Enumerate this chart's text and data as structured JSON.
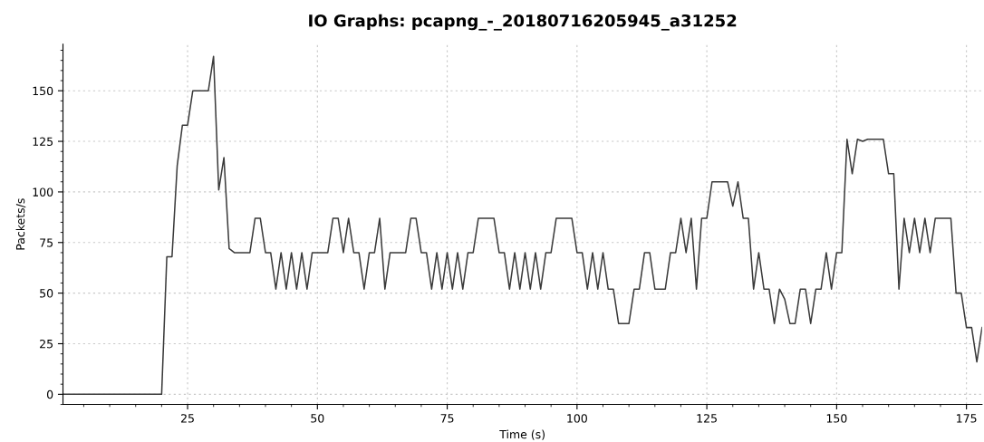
{
  "chart_data": {
    "type": "line",
    "title": "IO Graphs: pcapng_-_20180716205945_a31252",
    "xlabel": "Time (s)",
    "ylabel": "Packets/s",
    "x": [
      1,
      2,
      3,
      4,
      5,
      6,
      7,
      8,
      9,
      10,
      11,
      12,
      13,
      14,
      15,
      16,
      17,
      18,
      19,
      20,
      21,
      22,
      23,
      24,
      25,
      26,
      27,
      28,
      29,
      30,
      31,
      32,
      33,
      34,
      35,
      36,
      37,
      38,
      39,
      40,
      41,
      42,
      43,
      44,
      45,
      46,
      47,
      48,
      49,
      50,
      51,
      52,
      53,
      54,
      55,
      56,
      57,
      58,
      59,
      60,
      61,
      62,
      63,
      64,
      65,
      66,
      67,
      68,
      69,
      70,
      71,
      72,
      73,
      74,
      75,
      76,
      77,
      78,
      79,
      80,
      81,
      82,
      83,
      84,
      85,
      86,
      87,
      88,
      89,
      90,
      91,
      92,
      93,
      94,
      95,
      96,
      97,
      98,
      99,
      100,
      101,
      102,
      103,
      104,
      105,
      106,
      107,
      108,
      109,
      110,
      111,
      112,
      113,
      114,
      115,
      116,
      117,
      118,
      119,
      120,
      121,
      122,
      123,
      124,
      125,
      126,
      127,
      128,
      129,
      130,
      131,
      132,
      133,
      134,
      135,
      136,
      137,
      138,
      139,
      140,
      141,
      142,
      143,
      144,
      145,
      146,
      147,
      148,
      149,
      150,
      151,
      152,
      153,
      154,
      155,
      156,
      157,
      158,
      159,
      160,
      161,
      162,
      163,
      164,
      165,
      166,
      167,
      168,
      169,
      170,
      171,
      172,
      173,
      174,
      175,
      176,
      177,
      178
    ],
    "series": [
      {
        "color": "#3a3a3a",
        "values": [
          0,
          0,
          0,
          0,
          0,
          0,
          0,
          0,
          0,
          0,
          0,
          0,
          0,
          0,
          0,
          0,
          0,
          0,
          0,
          0,
          68,
          68,
          113,
          133,
          133,
          150,
          150,
          150,
          150,
          167,
          101,
          117,
          72,
          70,
          70,
          70,
          70,
          87,
          87,
          70,
          70,
          52,
          70,
          52,
          70,
          52,
          70,
          52,
          70,
          70,
          70,
          70,
          87,
          87,
          70,
          87,
          70,
          70,
          52,
          70,
          70,
          87,
          52,
          70,
          70,
          70,
          70,
          87,
          87,
          70,
          70,
          52,
          70,
          52,
          70,
          52,
          70,
          52,
          70,
          70,
          87,
          87,
          87,
          87,
          70,
          70,
          52,
          70,
          52,
          70,
          52,
          70,
          52,
          70,
          70,
          87,
          87,
          87,
          87,
          70,
          70,
          52,
          70,
          52,
          70,
          52,
          52,
          35,
          35,
          35,
          52,
          52,
          70,
          70,
          52,
          52,
          52,
          70,
          70,
          87,
          70,
          87,
          52,
          87,
          87,
          105,
          105,
          105,
          105,
          93,
          105,
          87,
          87,
          52,
          70,
          52,
          52,
          35,
          52,
          47,
          35,
          35,
          52,
          52,
          35,
          52,
          52,
          70,
          52,
          70,
          70,
          126,
          109,
          126,
          125,
          126,
          126,
          126,
          126,
          109,
          109,
          52,
          87,
          70,
          87,
          70,
          87,
          70,
          87,
          87,
          87,
          87,
          50,
          50,
          33,
          33,
          16,
          33
        ]
      }
    ],
    "xlim": [
      1,
      178
    ],
    "ylim": [
      -5,
      173
    ],
    "xticks": [
      25,
      50,
      75,
      100,
      125,
      150,
      175
    ],
    "yticks": [
      0,
      25,
      50,
      75,
      100,
      125,
      150
    ],
    "grid": true,
    "marker": "none",
    "line_style": "solid"
  }
}
